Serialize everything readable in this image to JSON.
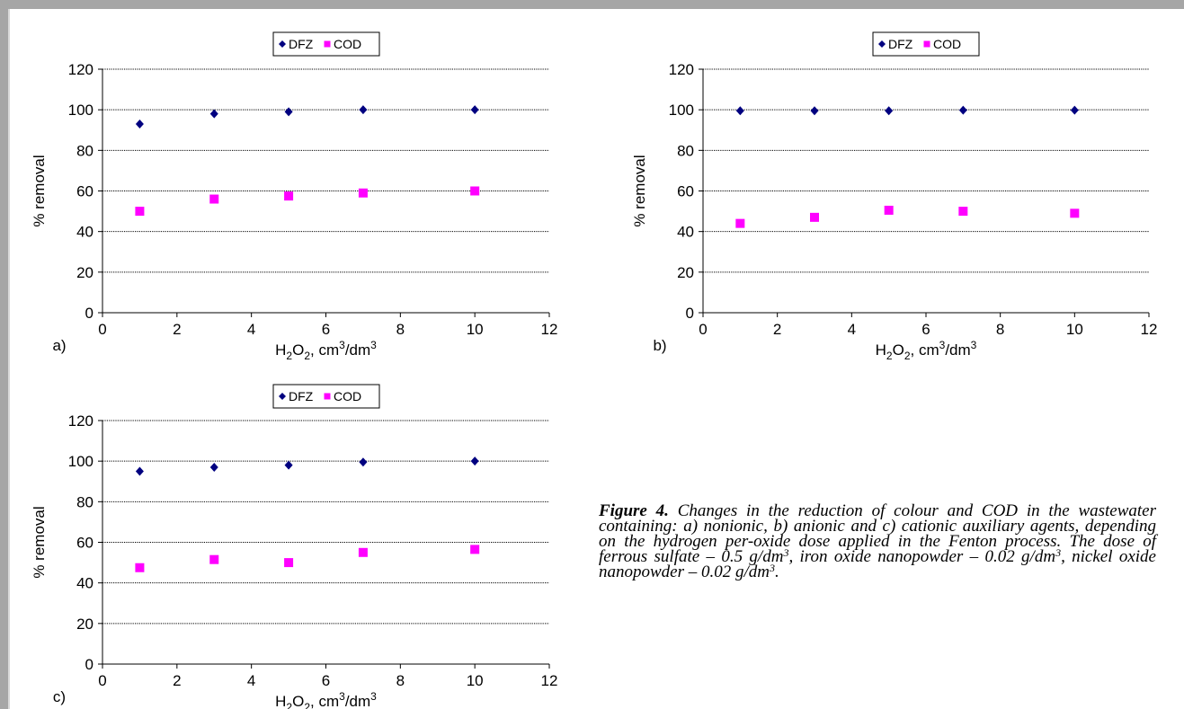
{
  "chart_data": [
    {
      "type": "scatter",
      "panel_label": "a)",
      "xlabel": {
        "base": "H",
        "sub": "2",
        "mid": "O",
        "sub2": "2",
        "rest": ", cm",
        "sup": "3",
        "tail": "/dm",
        "sup2": "3"
      },
      "ylabel": "% removal",
      "xlim": [
        0,
        12
      ],
      "ylim": [
        0,
        120
      ],
      "x_ticks": [
        "0",
        "2",
        "4",
        "6",
        "8",
        "10",
        "12"
      ],
      "y_ticks": [
        "0",
        "20",
        "40",
        "60",
        "80",
        "100",
        "120"
      ],
      "grid": true,
      "legend_position": "top-center",
      "series": [
        {
          "name": "DFZ",
          "marker": "diamond",
          "color": "#000080",
          "x": [
            1,
            3,
            5,
            7,
            10
          ],
          "y": [
            93,
            98,
            99,
            100,
            100
          ]
        },
        {
          "name": "COD",
          "marker": "square",
          "color": "#ff00ff",
          "x": [
            1,
            3,
            5,
            7,
            10
          ],
          "y": [
            50,
            56,
            57.5,
            59,
            60
          ]
        }
      ]
    },
    {
      "type": "scatter",
      "panel_label": "b)",
      "xlabel": {
        "base": "H",
        "sub": "2",
        "mid": "O",
        "sub2": "2",
        "rest": ", cm",
        "sup": "3",
        "tail": "/dm",
        "sup2": "3"
      },
      "ylabel": "% removal",
      "xlim": [
        0,
        12
      ],
      "ylim": [
        0,
        120
      ],
      "x_ticks": [
        "0",
        "2",
        "4",
        "6",
        "8",
        "10",
        "12"
      ],
      "y_ticks": [
        "0",
        "20",
        "40",
        "60",
        "80",
        "100",
        "120"
      ],
      "grid": true,
      "legend_position": "top-center",
      "series": [
        {
          "name": "DFZ",
          "marker": "diamond",
          "color": "#000080",
          "x": [
            1,
            3,
            5,
            7,
            10
          ],
          "y": [
            99.5,
            99.5,
            99.5,
            99.8,
            99.8
          ]
        },
        {
          "name": "COD",
          "marker": "square",
          "color": "#ff00ff",
          "x": [
            1,
            3,
            5,
            7,
            10
          ],
          "y": [
            44,
            47,
            50.5,
            50,
            49
          ]
        }
      ]
    },
    {
      "type": "scatter",
      "panel_label": "c)",
      "xlabel": {
        "base": "H",
        "sub": "2",
        "mid": "O",
        "sub2": "2",
        "rest": ", cm",
        "sup": "3",
        "tail": "/dm",
        "sup2": "3"
      },
      "ylabel": "% removal",
      "xlim": [
        0,
        12
      ],
      "ylim": [
        0,
        120
      ],
      "x_ticks": [
        "0",
        "2",
        "4",
        "6",
        "8",
        "10",
        "12"
      ],
      "y_ticks": [
        "0",
        "20",
        "40",
        "60",
        "80",
        "100",
        "120"
      ],
      "grid": true,
      "legend_position": "top-center",
      "series": [
        {
          "name": "DFZ",
          "marker": "diamond",
          "color": "#000080",
          "x": [
            1,
            3,
            5,
            7,
            10
          ],
          "y": [
            95,
            97,
            98,
            99.5,
            100
          ]
        },
        {
          "name": "COD",
          "marker": "square",
          "color": "#ff00ff",
          "x": [
            1,
            3,
            5,
            7,
            10
          ],
          "y": [
            47.5,
            51.5,
            50,
            55,
            56.5
          ]
        }
      ]
    }
  ],
  "caption": {
    "label": "Figure 4.",
    "text_1": " Changes in the reduction of colour and COD in the wastewater containing: a) nonionic, b) anionic and c) cationic auxiliary agents, depending on the hydrogen per-oxide dose applied in the Fenton process. The dose of ferrous sulfate – 0.5 g/dm",
    "sup_1": "3",
    "text_2": ", iron oxide nanopowder – 0.02 g/dm",
    "sup_2": "3",
    "text_3": ", nickel oxide nanopowder – 0.02 g/dm",
    "sup_3": "3",
    "text_4": "."
  }
}
